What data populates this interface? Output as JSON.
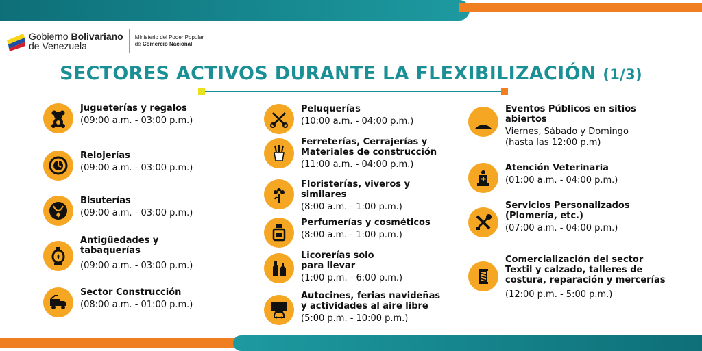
{
  "header": {
    "logo_line1_prefix": "Gobierno ",
    "logo_line1_bold": "Bolivariano",
    "logo_line2": "de Venezuela",
    "ministry_line1": "Ministerio del Poder Popular",
    "ministry_line2_prefix": "de ",
    "ministry_line2_bold": "Comercio Nacional"
  },
  "title": {
    "main": "SECTORES ACTIVOS DURANTE LA FLEXIBILIZACIÓN",
    "page": "(1/3)"
  },
  "colors": {
    "teal": "#1b8f96",
    "orange": "#f07f22",
    "icon_bg": "#f5a623",
    "yellow": "#e8e21e"
  },
  "columns": {
    "left": [
      {
        "name": "Jugueterías y regalos",
        "hours": "(09:00 a.m. - 03:00 p.m.)",
        "icon": "teddy-bear-icon"
      },
      {
        "name": "Relojerías",
        "hours": "(09:00 a.m. - 03:00 p.m.)",
        "icon": "clock-icon"
      },
      {
        "name": "Bisuterías",
        "hours": "(09:00 a.m. - 03:00 p.m.)",
        "icon": "necklace-icon"
      },
      {
        "name": "Antigüedades y tabaquerías",
        "hours": "(09:00 a.m. - 03:00 p.m.)",
        "icon": "lantern-icon"
      },
      {
        "name": "Sector Construcción",
        "hours": "(08:00 a.m. - 01:00 p.m.)",
        "icon": "truck-icon"
      }
    ],
    "middle": [
      {
        "name": "Peluquerías",
        "hours": "(10:00 a.m. - 04:00 p.m.)",
        "icon": "scissors-comb-icon"
      },
      {
        "name": "Ferreterías, Cerrajerías y Materiales de construcción",
        "hours": "(11:00 a.m. - 04:00 p.m.)",
        "icon": "hardware-icon"
      },
      {
        "name": "Floristerías, viveros y similares",
        "hours": "(8:00 a.m. - 1:00 p.m.)",
        "icon": "flower-icon"
      },
      {
        "name": "Perfumerías y cosméticos",
        "hours": "(8:00 a.m. - 1:00 p.m.)",
        "icon": "perfume-icon"
      },
      {
        "name": "Licorerías solo para llevar",
        "hours": "(1:00 p.m. - 6:00 p.m.)",
        "icon": "bottles-icon"
      },
      {
        "name": "Autocines, ferias navideñas y actividades al aire libre",
        "hours": "(5:00 p.m. - 10:00 p.m.)",
        "icon": "drive-in-icon"
      }
    ],
    "right": [
      {
        "name": "Eventos Públicos en sitios abiertos",
        "hours": "Viernes, Sábado y Domingo",
        "hours2": "(hasta las 12:00 p.m)",
        "icon": "stage-icon"
      },
      {
        "name": "Atención Veterinaria",
        "hours": "(01:00 a.m. - 04:00 p.m.)",
        "icon": "vet-icon"
      },
      {
        "name": "Servicios Personalizados (Plomería, etc.)",
        "hours": "(07:00 a.m. - 04:00 p.m.)",
        "icon": "tools-icon"
      },
      {
        "name": "Comercialización del sector Textil y calzado, talleres de costura, reparación y mercerías",
        "hours": "(12:00 p.m. - 5:00 p.m.)",
        "icon": "thread-icon"
      }
    ]
  }
}
